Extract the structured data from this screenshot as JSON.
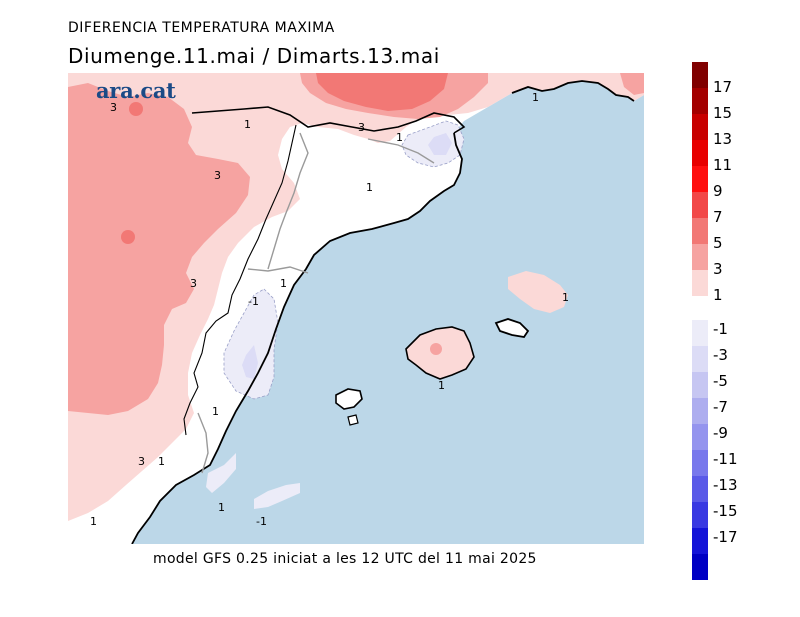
{
  "header": {
    "title": "DIFERENCIA TEMPERATURA MAXIMA",
    "subtitle": "Diumenge.11.mai  /  Dimarts.13.mai"
  },
  "logo": {
    "text": "ara.cat",
    "color": "#1b4a86"
  },
  "footer": {
    "text": "model GFS 0.25 iniciat a les 12 UTC del 11 mai 2025"
  },
  "colors": {
    "sea": "#bcd7e8",
    "neutral": "#ffffff",
    "warm_1": "#fbd9d7",
    "warm_3": "#f6a3a1",
    "warm_5": "#f27875",
    "cool_1": "#ececf8"
  },
  "contour_labels": [
    {
      "text": "3"
    },
    {
      "text": "1"
    },
    {
      "text": "3"
    },
    {
      "text": "1"
    },
    {
      "text": "3"
    },
    {
      "text": "1"
    },
    {
      "text": "1"
    },
    {
      "text": "3"
    },
    {
      "text": "1"
    },
    {
      "text": "-1"
    },
    {
      "text": "1"
    },
    {
      "text": "3"
    },
    {
      "text": "1"
    },
    {
      "text": "1"
    },
    {
      "text": "1"
    },
    {
      "text": "1"
    },
    {
      "text": "-1"
    },
    {
      "text": "1"
    }
  ],
  "legend": {
    "warm": [
      {
        "label": "17",
        "color": "#800000"
      },
      {
        "label": "15",
        "color": "#a40000"
      },
      {
        "label": "13",
        "color": "#c80000"
      },
      {
        "label": "11",
        "color": "#e80000"
      },
      {
        "label": "9",
        "color": "#ff0f0f"
      },
      {
        "label": "7",
        "color": "#f24848"
      },
      {
        "label": "5",
        "color": "#f27875"
      },
      {
        "label": "3",
        "color": "#f6a3a1"
      },
      {
        "label": "1",
        "color": "#fbd9d7"
      }
    ],
    "cool": [
      {
        "label": "-1",
        "color": "#ececf8"
      },
      {
        "label": "-3",
        "color": "#dcdcf6"
      },
      {
        "label": "-5",
        "color": "#c6c6f2"
      },
      {
        "label": "-7",
        "color": "#adadef"
      },
      {
        "label": "-9",
        "color": "#9494ee"
      },
      {
        "label": "-11",
        "color": "#7878ec"
      },
      {
        "label": "-13",
        "color": "#5a5ae8"
      },
      {
        "label": "-15",
        "color": "#3939e2"
      },
      {
        "label": "-17",
        "color": "#1414d8"
      },
      {
        "label": "",
        "color": "#0000c4"
      }
    ]
  }
}
